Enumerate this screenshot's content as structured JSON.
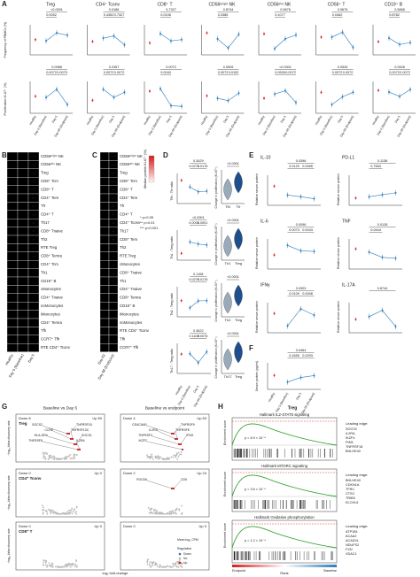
{
  "panel_a": {
    "letter": "A",
    "x_labels": [
      "Healthy",
      "Day 0 (Baseline)",
      "Day 5",
      "Day 68 (Endpoint)"
    ],
    "y_label_top": "Frequency of PBMCs (%)",
    "y_label_bottom": "Proliferation Ki-67⁺ (%)",
    "columns": [
      {
        "title": "Treg",
        "p_top": [
          "<0.0001",
          "0.0052"
        ],
        "p_bottom": [
          "0.0988",
          "0.0072",
          "0.0079"
        ]
      },
      {
        "title": "CD4⁺ Tconv",
        "p_top": [
          "0.0186",
          "0.4352",
          "0.7327"
        ],
        "p_bottom": [
          "0.2357",
          "0.0072",
          "0.0072"
        ]
      },
      {
        "title": "CD8⁺ T",
        "p_top": [
          "0.7327",
          "0.0106"
        ],
        "p_bottom": [
          "0.0072",
          "0.0040"
        ]
      },
      {
        "title": "CD56ᵇʳⁱᵍʰᵗ NK",
        "p_top": [
          "0.8744",
          "0.0385"
        ],
        "p_bottom": [
          "0.0526",
          "0.0072",
          "0.0152"
        ]
      },
      {
        "title": "CD56ᵈⁱᵐ NK",
        "p_top": [
          "0.9676",
          "0.1077"
        ],
        "p_bottom": [
          "<0.0001",
          "0.0526",
          "0.0072"
        ]
      },
      {
        "title": "CD56⁺ T",
        "p_top": [
          "0.9676",
          "0.0462"
        ],
        "p_bottom": [
          "0.0526",
          "0.0072",
          "0.0072"
        ]
      },
      {
        "title": "CD19⁺ B",
        "p_top": [
          "0.5866",
          "0.8782"
        ],
        "p_bottom": [
          "0.0526",
          "0.0072",
          "0.0072"
        ]
      }
    ]
  },
  "panel_b": {
    "letter": "B",
    "columns": [
      "Healthy",
      "Day 0 (Baseline)",
      "Day 5"
    ],
    "rows": [
      {
        "label": "CD56ᵇʳⁱᵍʰᵗ NK",
        "stars": "****"
      },
      {
        "label": "CD56ᵈⁱᵐ NK",
        "stars": "****"
      },
      {
        "label": "Treg",
        "stars": "****"
      },
      {
        "label": "CD8⁺ Tcm",
        "stars": "****"
      },
      {
        "label": "CD8⁺ T",
        "stars": "****"
      },
      {
        "label": "CD4⁺ Tem",
        "stars": "***"
      },
      {
        "label": "Tfr",
        "stars": "***"
      },
      {
        "label": "CD4⁺ T",
        "stars": "**"
      },
      {
        "label": "Th17",
        "stars": "**"
      },
      {
        "label": "CD8⁺ Tnaive",
        "stars": "**"
      },
      {
        "label": "Th2",
        "stars": "**"
      },
      {
        "label": "RTE Treg",
        "stars": "**"
      },
      {
        "label": "CD8⁺ Temra",
        "stars": "**"
      },
      {
        "label": "CD4⁺ Tcm",
        "stars": "*"
      },
      {
        "label": "Th1",
        "stars": "*"
      },
      {
        "label": "CD19⁺ B"
      },
      {
        "label": "cMonocytes"
      },
      {
        "label": "CD4⁺ Tnaive"
      },
      {
        "label": "ncMonocytes"
      },
      {
        "label": "iMonocytes"
      },
      {
        "label": "CD4⁺ Temra"
      },
      {
        "label": "Tfh"
      },
      {
        "label": "CCR7⁺ Tfh"
      },
      {
        "label": "RTE CD4⁺ Tconv"
      }
    ]
  },
  "panel_c": {
    "letter": "C",
    "columns": [
      "Day 63",
      "Day 68 (Endpoint)"
    ],
    "legend_title": "Median protein Ki-67⁺ (%)",
    "legend_stars": [
      "* p<0.05",
      "** p<0.01",
      "*** p<0.001"
    ],
    "rows": [
      {
        "label": "CD56ᵇʳⁱᵍʰᵗ NK",
        "stars": "****"
      },
      {
        "label": "CD56ᵈⁱᵐ NK",
        "stars": "****"
      },
      {
        "label": "Treg",
        "stars": "****"
      },
      {
        "label": "CD8⁺ Tcm",
        "stars": "****"
      },
      {
        "label": "CD8⁺ T",
        "stars": "***"
      },
      {
        "label": "CD4⁺ Tem",
        "stars": "***"
      },
      {
        "label": "Tfr",
        "stars": "***"
      },
      {
        "label": "CD4⁺ T",
        "stars": "**"
      },
      {
        "label": "CD4⁺ Tconv",
        "stars": "**"
      },
      {
        "label": "Th17",
        "stars": "**"
      },
      {
        "label": "CD8⁺ Tem",
        "stars": "**"
      },
      {
        "label": "Th2",
        "stars": "*"
      },
      {
        "label": "RTE Treg",
        "stars": "*"
      },
      {
        "label": "cMonocytes",
        "stars": "*"
      },
      {
        "label": "CD8⁺ Tnaive",
        "stars": "*"
      },
      {
        "label": "Th1",
        "stars": "*"
      },
      {
        "label": "CD4⁺ Tnaive"
      },
      {
        "label": "CD8⁺ Temra"
      },
      {
        "label": "CD19⁺ B"
      },
      {
        "label": "iMonocytes"
      },
      {
        "label": "ncMonocytes"
      },
      {
        "label": "RTE CD4⁺ Tconv"
      },
      {
        "label": "Tfh"
      },
      {
        "label": "CCR7⁺ Tfh"
      }
    ]
  },
  "panel_d": {
    "letter": "D",
    "violin_y_label": "Change in proliferation (Ki-67⁺)",
    "rows": [
      {
        "y_label": "Tfh : Tfr ratio",
        "p": [
          "0.3429",
          "0.0271",
          "0.0176"
        ],
        "violin_categories": [
          "Tfh",
          "Tfr"
        ],
        "p_violin": "<0.0001"
      },
      {
        "y_label": "Th1 : Treg ratio",
        "p": [
          "<0.0001",
          "0.0001",
          "0.0001"
        ],
        "violin_categories": [
          "Th1",
          "Treg"
        ],
        "p_violin": "<0.0001"
      },
      {
        "y_label": "Th2 : Treg ratio",
        "p": [
          "0.1108",
          "0.0271",
          "0.0176"
        ],
        "violin_categories": [
          "Th2",
          "Treg"
        ],
        "p_violin": "<0.0001"
      },
      {
        "y_label": "Th17 : Treg ratio",
        "p": [
          "0.3622",
          "0.1108",
          "0.0076"
        ],
        "violin_categories": [
          "Th17",
          "Treg"
        ],
        "p_violin": "<0.0001"
      }
    ]
  },
  "panel_e": {
    "letter": "E",
    "y_label": "Relative serum protein",
    "plots": [
      {
        "title": "IL-10",
        "p": [
          "0.0396",
          "0.0120",
          "0.0065"
        ]
      },
      {
        "title": "PD-L1",
        "p": [
          "0.1138",
          "0.7563"
        ]
      },
      {
        "title": "IL-6",
        "p": [
          "0.0096",
          "0.0073",
          "0.0043"
        ]
      },
      {
        "title": "TNF",
        "p": [
          "0.0128",
          "0.0444"
        ]
      },
      {
        "title": "IFNγ",
        "p": [
          "0.0303",
          "0.0109",
          "0.0008"
        ]
      },
      {
        "title": "IL-17A",
        "p": [
          "0.8744"
        ]
      }
    ]
  },
  "panel_f": {
    "letter": "F",
    "y_label": "Serum protein (pg/ml)",
    "p": [
      "0.0464",
      "0.1655",
      "0.0293"
    ]
  },
  "panel_g": {
    "letter": "G",
    "columns": [
      "Baseline vs Day 5",
      "Baseline vs endpoint"
    ],
    "y_label": "−log₁₀ false discovery rate",
    "x_label": "log₂ fold-change",
    "legend_size": "Mean log₂ CPM",
    "legend_regulation": "Regulation",
    "regulation": [
      "Down",
      "No",
      "Up"
    ],
    "rows": [
      {
        "label": "Treg",
        "counts": [
          [
            "Down 8",
            "Up 50"
          ],
          [
            "Down 4",
            "Up 53"
          ]
        ],
        "genes_day5": [
          "SOCS2",
          "TNFRSF18",
          "CCR8",
          "TNFRSF13C",
          "HLA-DRA",
          "SOCS1",
          "TNFRSF8",
          "IL2RA"
        ],
        "genes_endpoint": [
          "CEACAM1",
          "TNFRSF9",
          "IL2RA",
          "TNFRSF8",
          "TNFRSF4",
          "IFNG",
          "IKZF2"
        ]
      },
      {
        "label": "CD4⁺ Tconv",
        "counts": [
          [
            "Down 0",
            "Up 0"
          ],
          [
            "Down 2",
            "Up 24"
          ]
        ],
        "genes_endpoint": [
          "PDCD6",
          "CD5"
        ]
      },
      {
        "label": "CD8⁺ T",
        "counts": [
          [
            "Down 0",
            "Up 0"
          ],
          [
            "Down 0",
            "Up 0"
          ]
        ]
      }
    ]
  },
  "panel_h": {
    "letter": "H",
    "title": "Treg",
    "y_label": "Enrichment score",
    "x_label": "Rank",
    "x_ends": [
      "Endpoint",
      "Baseline"
    ],
    "plots": [
      {
        "title": "Hallmark IL2-STAT5 signaling",
        "p": "p = 6.9 × 10⁻⁴",
        "edge_title": "Leading edge:",
        "genes": [
          "SOCS2",
          "IL2RA",
          "IKZF4",
          "PIM1",
          "TNFRSF18",
          "BHLHE40"
        ]
      },
      {
        "title": "Hallmark MTORC signaling",
        "p": "p = 3.6 × 10⁻⁴",
        "edge_title": "Leading edge:",
        "genes": [
          "BHLHE40",
          "CDKN1A",
          "TFRC",
          "CTSC",
          "TRIB3",
          "ELOVL6"
        ]
      },
      {
        "title": "Hallmark Oxidative phosphorylation",
        "p": "p = 1.2 × 10⁻⁴",
        "edge_title": "Leading edge:",
        "genes": [
          "ATP1B1",
          "ACAA2",
          "ACADVL",
          "NDUFS2",
          "FXN",
          "VDAC1"
        ]
      }
    ]
  }
}
